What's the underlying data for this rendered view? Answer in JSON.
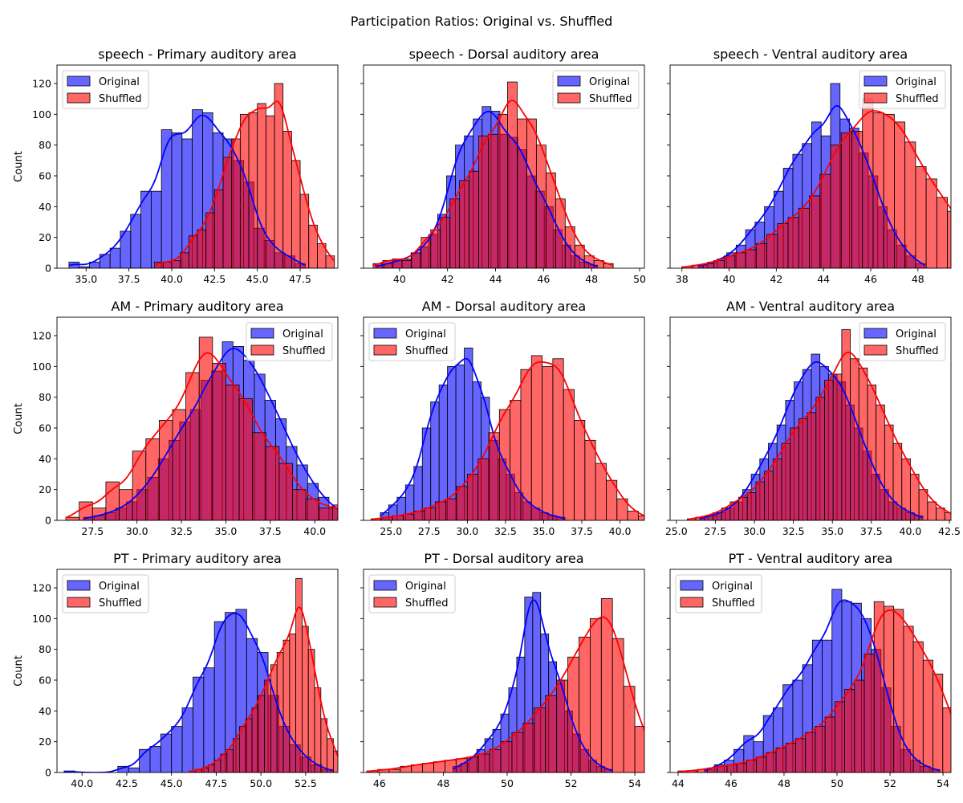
{
  "figure": {
    "suptitle": "Participation Ratios: Original vs. Shuffled",
    "ylabel": "Count",
    "colors": {
      "original": "#0000ff",
      "shuffled": "#ff0000"
    }
  },
  "chart_data": [
    {
      "type": "bar",
      "title": "speech - Primary auditory area",
      "xlabel": "",
      "ylabel": "Count",
      "xlim": [
        33.3,
        49.7
      ],
      "ylim": [
        0,
        132
      ],
      "xticks": [
        35.0,
        37.5,
        40.0,
        42.5,
        45.0,
        47.5
      ],
      "xticklabels": [
        "35.0",
        "37.5",
        "40.0",
        "42.5",
        "45.0",
        "47.5"
      ],
      "yticks": [
        0,
        20,
        40,
        60,
        80,
        100,
        120
      ],
      "yticklabels": [
        "0",
        "20",
        "40",
        "60",
        "80",
        "100",
        "120"
      ],
      "legend_loc": "upper left",
      "series": [
        {
          "name": "Original",
          "bin_start": 34.0,
          "bin_width": 0.6,
          "counts": [
            4,
            1,
            4,
            9,
            13,
            24,
            35,
            50,
            50,
            90,
            88,
            84,
            103,
            101,
            88,
            84,
            70,
            56,
            26,
            18,
            10,
            8,
            3
          ]
        },
        {
          "name": "Shuffled",
          "bin_start": 39.0,
          "bin_width": 0.5,
          "counts": [
            4,
            4,
            5,
            10,
            21,
            25,
            36,
            51,
            72,
            84,
            100,
            101,
            107,
            99,
            120,
            89,
            70,
            48,
            28,
            16,
            8
          ]
        }
      ]
    },
    {
      "type": "bar",
      "title": "speech - Dorsal auditory area",
      "xlabel": "",
      "ylabel": "",
      "xlim": [
        38.5,
        50.2
      ],
      "ylim": [
        0,
        132
      ],
      "xticks": [
        40,
        42,
        44,
        46,
        48,
        50
      ],
      "xticklabels": [
        "40",
        "42",
        "44",
        "46",
        "48",
        "50"
      ],
      "yticks": [
        0,
        20,
        40,
        60,
        80,
        100,
        120
      ],
      "yticklabels": [],
      "legend_loc": "upper right",
      "series": [
        {
          "name": "Original",
          "bin_start": 39.0,
          "bin_width": 0.37,
          "counts": [
            2,
            3,
            5,
            6,
            10,
            14,
            22,
            35,
            60,
            80,
            86,
            97,
            105,
            102,
            87,
            85,
            77,
            60,
            50,
            40,
            25,
            15,
            8,
            4,
            2
          ]
        },
        {
          "name": "Shuffled",
          "bin_start": 38.9,
          "bin_width": 0.4,
          "counts": [
            3,
            5,
            6,
            5,
            10,
            20,
            25,
            33,
            45,
            57,
            63,
            86,
            87,
            100,
            121,
            97,
            97,
            80,
            62,
            45,
            27,
            15,
            8,
            5,
            3
          ]
        }
      ]
    },
    {
      "type": "bar",
      "title": "speech - Ventral auditory area",
      "xlabel": "",
      "ylabel": "",
      "xlim": [
        37.5,
        49.4
      ],
      "ylim": [
        0,
        132
      ],
      "xticks": [
        38,
        40,
        42,
        44,
        46,
        48
      ],
      "xticklabels": [
        "38",
        "40",
        "42",
        "44",
        "46",
        "48"
      ],
      "yticks": [
        0,
        20,
        40,
        60,
        80,
        100,
        120
      ],
      "yticklabels": [],
      "legend_loc": "upper right",
      "series": [
        {
          "name": "Original",
          "bin_start": 38.7,
          "bin_width": 0.4,
          "counts": [
            2,
            4,
            6,
            10,
            15,
            25,
            30,
            40,
            50,
            65,
            74,
            81,
            95,
            86,
            120,
            97,
            91,
            75,
            60,
            40,
            25,
            15,
            8,
            3
          ]
        },
        {
          "name": "Shuffled",
          "bin_start": 38.0,
          "bin_width": 0.45,
          "counts": [
            1,
            2,
            3,
            5,
            8,
            10,
            12,
            16,
            22,
            29,
            33,
            39,
            47,
            61,
            80,
            88,
            89,
            110,
            101,
            100,
            95,
            82,
            66,
            58,
            46,
            37,
            28,
            17,
            9,
            6
          ]
        }
      ]
    },
    {
      "type": "bar",
      "title": "AM - Primary auditory area",
      "xlabel": "",
      "ylabel": "Count",
      "xlim": [
        25.5,
        41.3
      ],
      "ylim": [
        0,
        132
      ],
      "xticks": [
        27.5,
        30.0,
        32.5,
        35.0,
        37.5,
        40.0
      ],
      "xticklabels": [
        "27.5",
        "30.0",
        "32.5",
        "35.0",
        "37.5",
        "40.0"
      ],
      "yticks": [
        0,
        20,
        40,
        60,
        80,
        100,
        120
      ],
      "yticklabels": [
        "0",
        "20",
        "40",
        "60",
        "80",
        "100",
        "120"
      ],
      "legend_loc": "upper right",
      "series": [
        {
          "name": "Original",
          "bin_start": 27.0,
          "bin_width": 0.6,
          "counts": [
            2,
            3,
            5,
            8,
            12,
            20,
            28,
            40,
            52,
            64,
            72,
            91,
            97,
            116,
            113,
            104,
            95,
            78,
            66,
            48,
            36,
            24,
            15,
            8,
            4,
            2
          ]
        },
        {
          "name": "Shuffled",
          "bin_start": 26.0,
          "bin_width": 0.75,
          "counts": [
            2,
            12,
            8,
            25,
            20,
            45,
            53,
            65,
            72,
            96,
            119,
            102,
            88,
            79,
            57,
            48,
            37,
            20,
            14,
            8,
            10
          ]
        }
      ]
    },
    {
      "type": "bar",
      "title": "AM - Dorsal auditory area",
      "xlabel": "",
      "ylabel": "",
      "xlim": [
        23.2,
        41.6
      ],
      "ylim": [
        0,
        132
      ],
      "xticks": [
        25.0,
        27.5,
        30.0,
        32.5,
        35.0,
        37.5,
        40.0
      ],
      "xticklabels": [
        "25.0",
        "27.5",
        "30.0",
        "32.5",
        "35.0",
        "37.5",
        "40.0"
      ],
      "yticks": [
        0,
        20,
        40,
        60,
        80,
        100,
        120
      ],
      "yticklabels": [],
      "legend_loc": "upper left",
      "series": [
        {
          "name": "Original",
          "bin_start": 24.3,
          "bin_width": 0.55,
          "counts": [
            5,
            10,
            15,
            23,
            35,
            60,
            77,
            88,
            100,
            101,
            112,
            90,
            80,
            52,
            40,
            30,
            18,
            12,
            8,
            5,
            3,
            2
          ]
        },
        {
          "name": "Shuffled",
          "bin_start": 23.7,
          "bin_width": 0.7,
          "counts": [
            1,
            2,
            3,
            4,
            6,
            8,
            12,
            14,
            22,
            30,
            40,
            57,
            72,
            78,
            98,
            107,
            100,
            105,
            85,
            65,
            52,
            37,
            26,
            14,
            6,
            3
          ]
        }
      ]
    },
    {
      "type": "bar",
      "title": "AM - Ventral auditory area",
      "xlabel": "",
      "ylabel": "",
      "xlim": [
        24.6,
        42.6
      ],
      "ylim": [
        0,
        132
      ],
      "xticks": [
        25.0,
        27.5,
        30.0,
        32.5,
        35.0,
        37.5,
        40.0,
        42.5
      ],
      "xticklabels": [
        "25.0",
        "27.5",
        "30.0",
        "32.5",
        "35.0",
        "37.5",
        "40.0",
        "42.5"
      ],
      "yticks": [
        0,
        20,
        40,
        60,
        80,
        100,
        120
      ],
      "yticklabels": [],
      "legend_loc": "upper right",
      "series": [
        {
          "name": "Original",
          "bin_start": 26.5,
          "bin_width": 0.55,
          "counts": [
            2,
            3,
            5,
            8,
            12,
            20,
            30,
            40,
            50,
            62,
            78,
            90,
            98,
            108,
            100,
            95,
            90,
            75,
            60,
            45,
            30,
            20,
            12,
            8,
            5,
            3
          ]
        },
        {
          "name": "Shuffled",
          "bin_start": 25.7,
          "bin_width": 0.55,
          "counts": [
            1,
            2,
            3,
            5,
            8,
            12,
            15,
            18,
            25,
            32,
            40,
            50,
            60,
            66,
            70,
            80,
            91,
            95,
            124,
            105,
            99,
            88,
            75,
            62,
            50,
            40,
            30,
            20,
            12,
            8,
            5,
            2
          ]
        }
      ]
    },
    {
      "type": "bar",
      "title": "PT - Primary auditory area",
      "xlabel": "",
      "ylabel": "Count",
      "xlim": [
        38.6,
        54.3
      ],
      "ylim": [
        0,
        132
      ],
      "xticks": [
        40.0,
        42.5,
        45.0,
        47.5,
        50.0,
        52.5
      ],
      "xticklabels": [
        "40.0",
        "42.5",
        "45.0",
        "47.5",
        "50.0",
        "52.5"
      ],
      "yticks": [
        0,
        20,
        40,
        60,
        80,
        100,
        120
      ],
      "yticklabels": [
        "0",
        "20",
        "40",
        "60",
        "80",
        "100",
        "120"
      ],
      "legend_loc": "upper left",
      "series": [
        {
          "name": "Original",
          "bin_start": 39.0,
          "bin_width": 0.6,
          "counts": [
            1,
            0,
            0,
            0,
            0,
            4,
            3,
            15,
            17,
            25,
            30,
            42,
            62,
            68,
            98,
            104,
            106,
            87,
            78,
            50,
            30,
            18,
            10,
            5,
            2
          ]
        },
        {
          "name": "Shuffled",
          "bin_start": 46.0,
          "bin_width": 0.35,
          "counts": [
            1,
            2,
            3,
            5,
            8,
            12,
            15,
            22,
            30,
            35,
            42,
            50,
            60,
            70,
            78,
            86,
            90,
            126,
            95,
            80,
            55,
            35,
            22,
            14
          ]
        }
      ]
    },
    {
      "type": "bar",
      "title": "PT - Dorsal auditory area",
      "xlabel": "",
      "ylabel": "",
      "xlim": [
        45.5,
        54.3
      ],
      "ylim": [
        0,
        132
      ],
      "xticks": [
        46,
        48,
        50,
        52,
        54
      ],
      "xticklabels": [
        "46",
        "48",
        "50",
        "52",
        "54"
      ],
      "yticks": [
        0,
        20,
        40,
        60,
        80,
        100,
        120
      ],
      "yticklabels": [],
      "legend_loc": "upper left",
      "series": [
        {
          "name": "Original",
          "bin_start": 48.3,
          "bin_width": 0.25,
          "counts": [
            4,
            6,
            10,
            15,
            22,
            28,
            38,
            55,
            75,
            114,
            117,
            90,
            72,
            60,
            40,
            25,
            15,
            8,
            4,
            2
          ]
        },
        {
          "name": "Shuffled",
          "bin_start": 45.6,
          "bin_width": 0.35,
          "counts": [
            1,
            2,
            2,
            4,
            5,
            6,
            7,
            8,
            9,
            10,
            12,
            15,
            20,
            26,
            32,
            42,
            50,
            60,
            75,
            88,
            100,
            113,
            87,
            56,
            30,
            15,
            6
          ]
        }
      ]
    },
    {
      "type": "bar",
      "title": "PT - Ventral auditory area",
      "xlabel": "",
      "ylabel": "",
      "xlim": [
        43.7,
        54.3
      ],
      "ylim": [
        0,
        132
      ],
      "xticks": [
        44,
        46,
        48,
        50,
        52,
        54
      ],
      "xticklabels": [
        "44",
        "46",
        "48",
        "50",
        "52",
        "54"
      ],
      "yticks": [
        0,
        20,
        40,
        60,
        80,
        100,
        120
      ],
      "yticklabels": [],
      "legend_loc": "upper left",
      "series": [
        {
          "name": "Original",
          "bin_start": 45.0,
          "bin_width": 0.37,
          "counts": [
            2,
            5,
            8,
            15,
            24,
            20,
            37,
            42,
            57,
            60,
            70,
            86,
            86,
            119,
            111,
            110,
            100,
            80,
            55,
            30,
            15,
            8,
            4,
            2
          ]
        },
        {
          "name": "Shuffled",
          "bin_start": 44.0,
          "bin_width": 0.37,
          "counts": [
            1,
            1,
            2,
            3,
            4,
            5,
            6,
            8,
            10,
            13,
            16,
            19,
            22,
            26,
            30,
            36,
            46,
            54,
            60,
            77,
            111,
            108,
            106,
            95,
            85,
            73,
            64,
            42,
            26,
            15,
            8
          ]
        }
      ]
    }
  ]
}
